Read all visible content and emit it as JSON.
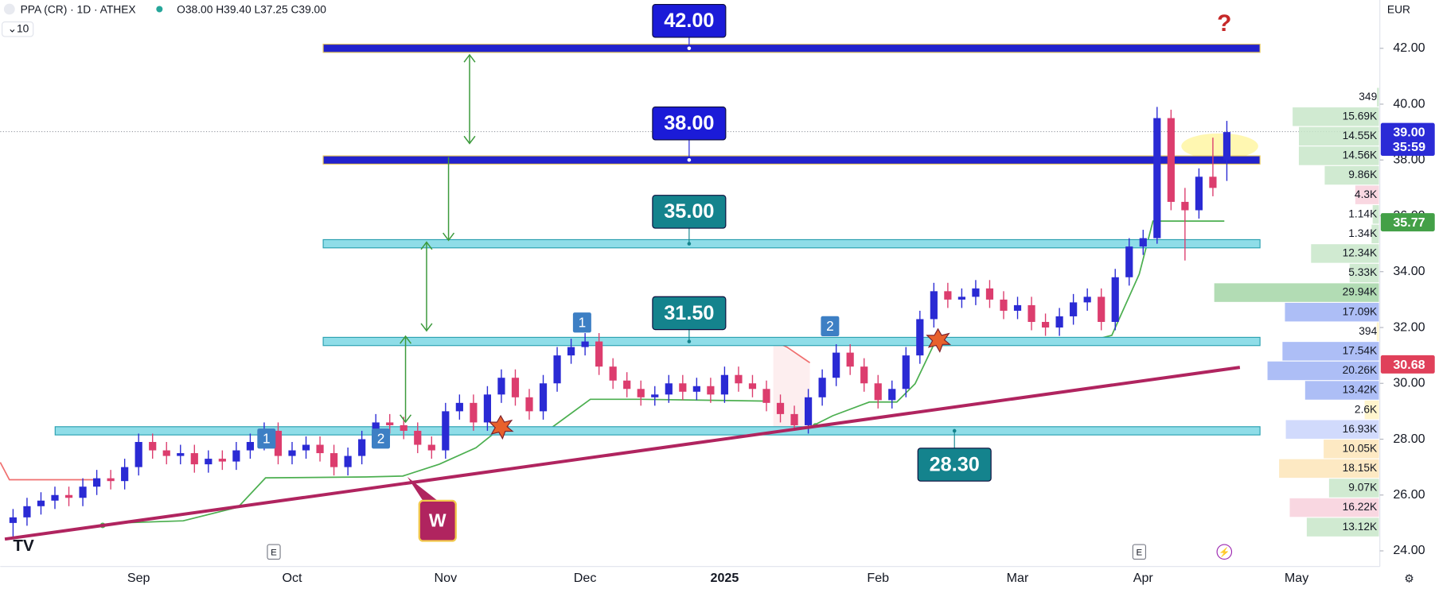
{
  "chart_data": {
    "type": "candlestick",
    "header": {
      "symbol": "PPA (CR) · 1D · ATHEX",
      "ohlc": "O38.00 H39.40 L37.25 C39.00",
      "indicator": "10"
    },
    "currency": "EUR",
    "categories": [
      null,
      null,
      null,
      null,
      null,
      null,
      null,
      null,
      null,
      "Sep",
      null,
      null,
      null,
      null,
      null,
      null,
      null,
      null,
      null,
      null,
      "Oct",
      null,
      null,
      null,
      null,
      null,
      null,
      null,
      null,
      null,
      null,
      "Nov",
      null,
      null,
      null,
      null,
      null,
      null,
      null,
      null,
      null,
      "Dec",
      null,
      null,
      null,
      null,
      null,
      null,
      null,
      null,
      null,
      "2025",
      null,
      null,
      null,
      null,
      null,
      null,
      null,
      null,
      null,
      null,
      "Feb",
      null,
      null,
      null,
      null,
      null,
      null,
      null,
      null,
      null,
      "Mar",
      null,
      null,
      null,
      null,
      null,
      null,
      null,
      null,
      "Apr",
      null,
      null,
      null,
      null,
      null,
      null,
      null,
      null,
      null,
      null,
      "May"
    ],
    "ohlc": {
      "open": [
        25.0,
        25.2,
        25.6,
        25.8,
        26.0,
        25.9,
        26.3,
        26.6,
        26.5,
        27.0,
        27.9,
        27.6,
        27.4,
        27.5,
        27.1,
        27.3,
        27.2,
        27.6,
        27.9,
        28.3,
        27.4,
        27.6,
        27.8,
        27.5,
        27.0,
        27.4,
        28.0,
        28.6,
        28.5,
        28.3,
        27.8,
        27.6,
        29.0,
        29.3,
        28.6,
        29.6,
        30.2,
        29.5,
        29.0,
        30.0,
        31.0,
        31.3,
        31.5,
        30.6,
        30.1,
        29.8,
        29.5,
        29.6,
        30.0,
        29.7,
        29.9,
        29.6,
        30.3,
        30.0,
        29.8,
        29.3,
        28.9,
        28.5,
        29.5,
        30.2,
        31.1,
        30.6,
        30.0,
        29.4,
        29.8,
        31.0,
        32.3,
        33.3,
        33.0,
        33.1,
        33.4,
        33.0,
        32.6,
        32.8,
        32.2,
        32.0,
        32.4,
        32.9,
        33.1,
        32.2,
        33.8,
        34.9,
        35.2,
        39.5,
        36.5,
        36.2,
        37.4,
        38.0,
        null,
        null,
        null,
        null,
        null
      ],
      "high": [
        25.5,
        25.9,
        26.1,
        26.3,
        26.3,
        26.6,
        26.9,
        26.9,
        27.3,
        28.2,
        28.2,
        27.9,
        27.8,
        27.8,
        27.6,
        27.6,
        27.9,
        28.2,
        28.6,
        28.6,
        27.9,
        28.1,
        28.1,
        27.8,
        27.7,
        28.3,
        28.9,
        28.9,
        28.8,
        28.6,
        28.1,
        29.3,
        29.6,
        29.6,
        29.9,
        30.5,
        30.5,
        29.8,
        30.3,
        31.3,
        31.6,
        31.8,
        31.8,
        30.9,
        30.4,
        30.1,
        29.9,
        30.3,
        30.3,
        30.2,
        30.2,
        30.6,
        30.6,
        30.3,
        30.1,
        29.6,
        29.2,
        29.8,
        30.5,
        31.4,
        31.4,
        30.9,
        30.3,
        30.1,
        31.3,
        32.6,
        33.6,
        33.6,
        33.4,
        33.7,
        33.7,
        33.3,
        33.1,
        33.1,
        32.5,
        32.7,
        33.2,
        33.4,
        33.4,
        34.1,
        35.2,
        35.5,
        39.9,
        39.8,
        37.0,
        37.7,
        38.8,
        39.4,
        null,
        null,
        null,
        null,
        null
      ],
      "low": [
        24.5,
        24.9,
        25.3,
        25.5,
        25.6,
        25.6,
        26.0,
        26.2,
        26.2,
        26.7,
        27.3,
        27.1,
        27.1,
        26.8,
        26.8,
        26.9,
        26.9,
        27.3,
        27.6,
        27.1,
        27.1,
        27.3,
        27.2,
        26.7,
        26.7,
        27.1,
        27.7,
        28.2,
        28.0,
        27.5,
        27.3,
        27.3,
        28.7,
        28.3,
        28.3,
        29.3,
        29.2,
        28.7,
        28.7,
        29.7,
        30.7,
        31.0,
        30.3,
        29.8,
        29.5,
        29.2,
        29.2,
        29.3,
        29.4,
        29.4,
        29.3,
        29.3,
        29.7,
        29.5,
        29.0,
        28.6,
        28.3,
        28.2,
        29.2,
        29.9,
        30.3,
        29.7,
        29.1,
        29.1,
        29.5,
        30.7,
        32.0,
        32.7,
        32.7,
        32.8,
        32.7,
        32.3,
        32.3,
        31.9,
        31.7,
        31.7,
        32.1,
        32.6,
        31.9,
        31.9,
        33.5,
        34.6,
        35.0,
        36.2,
        34.4,
        35.9,
        36.7,
        37.25,
        null,
        null,
        null,
        null,
        null
      ],
      "close": [
        25.2,
        25.6,
        25.8,
        26.0,
        25.9,
        26.3,
        26.6,
        26.5,
        27.0,
        27.9,
        27.6,
        27.4,
        27.5,
        27.1,
        27.3,
        27.2,
        27.6,
        27.9,
        28.3,
        27.4,
        27.6,
        27.8,
        27.5,
        27.0,
        27.4,
        28.0,
        28.6,
        28.5,
        28.3,
        27.8,
        27.6,
        29.0,
        29.3,
        28.6,
        29.6,
        30.2,
        29.5,
        29.0,
        30.0,
        31.0,
        31.3,
        31.5,
        30.6,
        30.1,
        29.8,
        29.5,
        29.6,
        30.0,
        29.7,
        29.9,
        29.6,
        30.3,
        30.0,
        29.8,
        29.3,
        28.9,
        28.5,
        29.5,
        30.2,
        31.1,
        30.6,
        30.0,
        29.4,
        29.8,
        31.0,
        32.3,
        33.3,
        33.0,
        33.1,
        33.4,
        33.0,
        32.6,
        32.8,
        32.2,
        32.0,
        32.4,
        32.9,
        33.1,
        32.2,
        33.8,
        34.9,
        35.2,
        39.5,
        36.5,
        36.2,
        37.4,
        37.0,
        39.0,
        null,
        null,
        null,
        null,
        null
      ]
    },
    "colors": {
      "up": "#2a2ad4",
      "down": "#dc3d6e"
    },
    "ylim": [
      23.44,
      43.73
    ],
    "yticks": [
      {
        "value": 24,
        "label": "24.00"
      },
      {
        "value": 26,
        "label": "26.00"
      },
      {
        "value": 28,
        "label": "28.00"
      },
      {
        "value": 30,
        "label": "30.00"
      },
      {
        "value": 32,
        "label": "32.00"
      },
      {
        "value": 34,
        "label": "34.00"
      },
      {
        "value": 36,
        "label": "36.00"
      },
      {
        "value": 38,
        "label": "38.00"
      },
      {
        "value": 40,
        "label": "40.00"
      },
      {
        "value": 42,
        "label": "42.00"
      }
    ],
    "levels": [
      {
        "value": 42,
        "label": "42.00",
        "color": "#1b1bd8"
      },
      {
        "value": 38,
        "label": "38.00",
        "color": "#1b1bd8"
      },
      {
        "value": 35,
        "label": "35.00",
        "color": "#14838d"
      },
      {
        "value": 31.5,
        "label": "31.50",
        "color": "#14838d"
      },
      {
        "value": 28.3,
        "label": "28.30",
        "color": "#14838d"
      }
    ],
    "price_tags": [
      {
        "value": 39,
        "label": "39.00",
        "color": "#2b2bd6"
      },
      {
        "value": 35.77,
        "label": "35.77",
        "color": "#43a047"
      },
      {
        "value": 30.68,
        "label": "30.68",
        "color": "#e0405a"
      }
    ],
    "countdown": "35:59",
    "volume_profile": {
      "price_range": [
        24.5,
        40.6
      ],
      "values": [
        349,
        15690,
        14550,
        14560,
        9860,
        4300,
        1140,
        1340,
        12340,
        5330,
        29940,
        17090,
        394,
        17540,
        20260,
        13420,
        2600,
        16930,
        10050,
        18150,
        9070,
        16220,
        13120
      ],
      "value_labels": [
        "349",
        "15.69K",
        "14.55K",
        "14.56K",
        "9.86K",
        "4.3K",
        "1.14K",
        "1.34K",
        "12.34K",
        "5.33K",
        "29.94K",
        "17.09K",
        "394",
        "17.54K",
        "20.26K",
        "13.42K",
        "2.6K",
        "16.93K",
        "10.05K",
        "18.15K",
        "9.07K",
        "16.22K",
        "13.12K"
      ],
      "colors": [
        "#c8e6c9",
        "#c8e6c9",
        "#c8e6c9",
        "#c8e6c9",
        "#c8e6c9",
        "#f8d0dc",
        "#c8e6c9",
        "#c8e6c9",
        "#c8e6c9",
        "#c8e6c9",
        "#a5d6a7",
        "#9fb3f5",
        "#fff3c4",
        "#9fb3f5",
        "#9fb3f5",
        "#9fb3f5",
        "#fff3c4",
        "#c9d4fb",
        "#fde5b8",
        "#fde5b8",
        "#c8e6c9",
        "#f8d0dc",
        "#c8e6c9"
      ]
    },
    "annotations": [
      "1",
      "2",
      "1",
      "2",
      "W",
      "?"
    ],
    "event_marker": "E"
  }
}
